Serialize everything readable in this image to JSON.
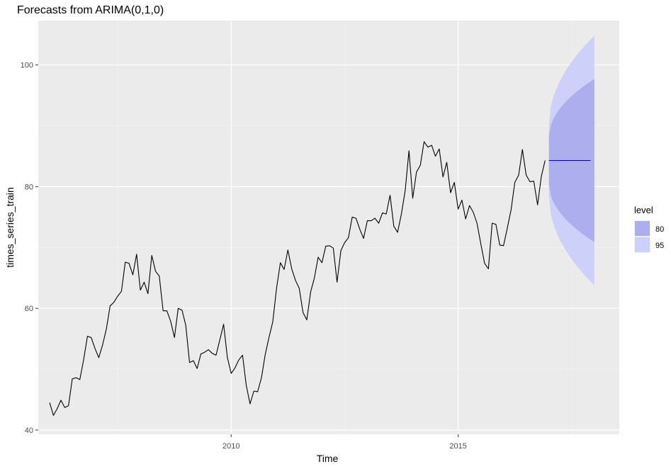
{
  "chart_data": {
    "type": "line",
    "title": "Forecasts from ARIMA(0,1,0)",
    "xlabel": "Time",
    "ylabel": "times_series_train",
    "xlim": [
      2005.75,
      2018.55
    ],
    "ylim": [
      39.3,
      107.3
    ],
    "x_ticks": [
      2010,
      2015
    ],
    "x_tick_labels": [
      "2010",
      "2015"
    ],
    "y_ticks": [
      40,
      60,
      80,
      100
    ],
    "y_tick_labels": [
      "40",
      "60",
      "80",
      "100"
    ],
    "grid": true,
    "panel_background": "#ebebeb",
    "series": [
      {
        "color": "#000000",
        "x_start": 2006.0,
        "x_step": 0.08333,
        "values": [
          44.5,
          42.4,
          43.5,
          44.9,
          43.7,
          44.0,
          48.4,
          48.6,
          48.3,
          51.6,
          55.4,
          55.2,
          53.4,
          51.9,
          54.0,
          56.6,
          60.4,
          61.0,
          62.0,
          62.8,
          67.6,
          67.4,
          65.5,
          68.9,
          63.0,
          64.3,
          62.4,
          68.7,
          66.1,
          65.3,
          59.6,
          59.6,
          57.9,
          55.2,
          60.0,
          59.7,
          57.2,
          51.1,
          51.4,
          50.1,
          52.5,
          52.8,
          53.2,
          52.6,
          52.3,
          54.8,
          57.4,
          51.9,
          49.3,
          50.2,
          51.5,
          52.3,
          47.3,
          44.3,
          46.4,
          46.3,
          48.6,
          52.4,
          55.2,
          57.8,
          63.3,
          67.5,
          66.4,
          69.6,
          66.5,
          64.6,
          63.3,
          59.3,
          58.1,
          62.7,
          65.0,
          68.4,
          67.5,
          70.2,
          70.3,
          69.9,
          64.3,
          69.5,
          70.8,
          71.6,
          75.0,
          74.8,
          73.0,
          71.5,
          74.4,
          74.4,
          74.8,
          74.0,
          75.7,
          75.5,
          78.6,
          73.5,
          72.5,
          75.5,
          79.3,
          85.9,
          78.1,
          82.4,
          83.5,
          87.4,
          86.5,
          86.8,
          85.0,
          86.2,
          81.6,
          84.0,
          79.0,
          80.7,
          76.3,
          77.8,
          74.7,
          76.9,
          75.8,
          74.0,
          70.6,
          67.4,
          66.5,
          74.0,
          73.8,
          70.4,
          70.3,
          73.2,
          76.2,
          80.7,
          81.9,
          86.1,
          81.9,
          80.8,
          80.9,
          77.0,
          81.7,
          84.3
        ]
      },
      {
        "color": "#0000aa",
        "x_start": 2017.0,
        "x_step": 0.08333,
        "values": [
          84.3,
          84.3,
          84.3,
          84.3,
          84.3,
          84.3,
          84.3,
          84.3,
          84.3,
          84.3,
          84.3,
          84.3
        ]
      }
    ],
    "forecast_intervals": {
      "x_start": 2017.0,
      "x_end": 2018.0,
      "level_80": {
        "color": "#acaeee",
        "lower_start": 80.5,
        "upper_start": 88.1,
        "lower_end": 70.9,
        "upper_end": 97.7
      },
      "level_95": {
        "color": "#cdd0f8",
        "lower_start": 78.5,
        "upper_start": 90.1,
        "lower_end": 63.8,
        "upper_end": 104.8
      }
    },
    "legend": {
      "title": "level",
      "position": "right",
      "entries": [
        {
          "label": "80",
          "color": "#acaeee"
        },
        {
          "label": "95",
          "color": "#cdd0f8"
        }
      ]
    }
  }
}
